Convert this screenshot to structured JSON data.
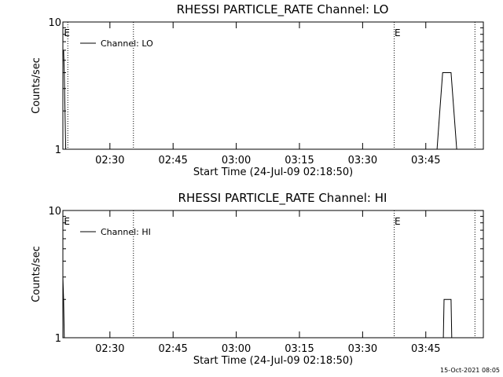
{
  "chart_data": [
    {
      "type": "line",
      "title": "RHESSI PARTICLE_RATE Channel: LO",
      "xlabel": "Start Time (24-Jul-09 02:18:50)",
      "ylabel": "Counts/sec",
      "yscale": "log",
      "ylim": [
        1,
        10
      ],
      "y_ticks": [
        "1",
        "10"
      ],
      "xlim": [
        "02:18:50",
        "03:58:40"
      ],
      "x_ticks": [
        "02:30",
        "02:45",
        "03:00",
        "03:15",
        "03:30",
        "03:45"
      ],
      "legend": {
        "placement": "top-left",
        "entries": [
          "Channel: LO"
        ]
      },
      "grid": false,
      "vlines": [
        {
          "time": "02:20:00",
          "label": ""
        },
        {
          "time": "02:35:35",
          "label": ""
        },
        {
          "time": "03:37:30",
          "label": ""
        },
        {
          "time": "03:56:40",
          "label": ""
        }
      ],
      "markers": [
        {
          "time": "02:19:05",
          "label": "E"
        },
        {
          "time": "03:37:35",
          "label": "E"
        }
      ],
      "series": [
        {
          "name": "Channel: LO",
          "points": [
            [
              "02:19:00",
              6.0
            ],
            [
              "02:19:10",
              4.0
            ],
            [
              "02:19:20",
              2.0
            ],
            [
              "02:19:30",
              1.0
            ],
            [
              "03:47:40",
              1.0
            ],
            [
              "03:48:20",
              2.0
            ],
            [
              "03:49:00",
              4.0
            ],
            [
              "03:51:00",
              4.0
            ],
            [
              "03:51:40",
              2.0
            ],
            [
              "03:52:20",
              1.0
            ]
          ]
        }
      ]
    },
    {
      "type": "line",
      "title": "RHESSI PARTICLE_RATE Channel: HI",
      "xlabel": "Start Time (24-Jul-09 02:18:50)",
      "ylabel": "Counts/sec",
      "yscale": "log",
      "ylim": [
        1,
        10
      ],
      "y_ticks": [
        "1",
        "10"
      ],
      "xlim": [
        "02:18:50",
        "03:58:40"
      ],
      "x_ticks": [
        "02:30",
        "02:45",
        "03:00",
        "03:15",
        "03:30",
        "03:45"
      ],
      "legend": {
        "placement": "top-left",
        "entries": [
          "Channel: HI"
        ]
      },
      "grid": false,
      "vlines": [
        {
          "time": "02:35:35",
          "label": ""
        },
        {
          "time": "03:37:30",
          "label": ""
        },
        {
          "time": "03:56:40",
          "label": ""
        }
      ],
      "markers": [
        {
          "time": "02:19:05",
          "label": "E"
        },
        {
          "time": "03:37:35",
          "label": "E"
        }
      ],
      "series": [
        {
          "name": "Channel: HI",
          "points": [
            [
              "02:18:50",
              3.0
            ],
            [
              "02:19:00",
              2.0
            ],
            [
              "02:19:10",
              1.0
            ],
            [
              "03:49:10",
              1.0
            ],
            [
              "03:49:20",
              2.0
            ],
            [
              "03:51:00",
              2.0
            ],
            [
              "03:51:10",
              1.0
            ]
          ]
        }
      ]
    }
  ],
  "footer": {
    "stamp": "15-Oct-2021 08:05"
  }
}
